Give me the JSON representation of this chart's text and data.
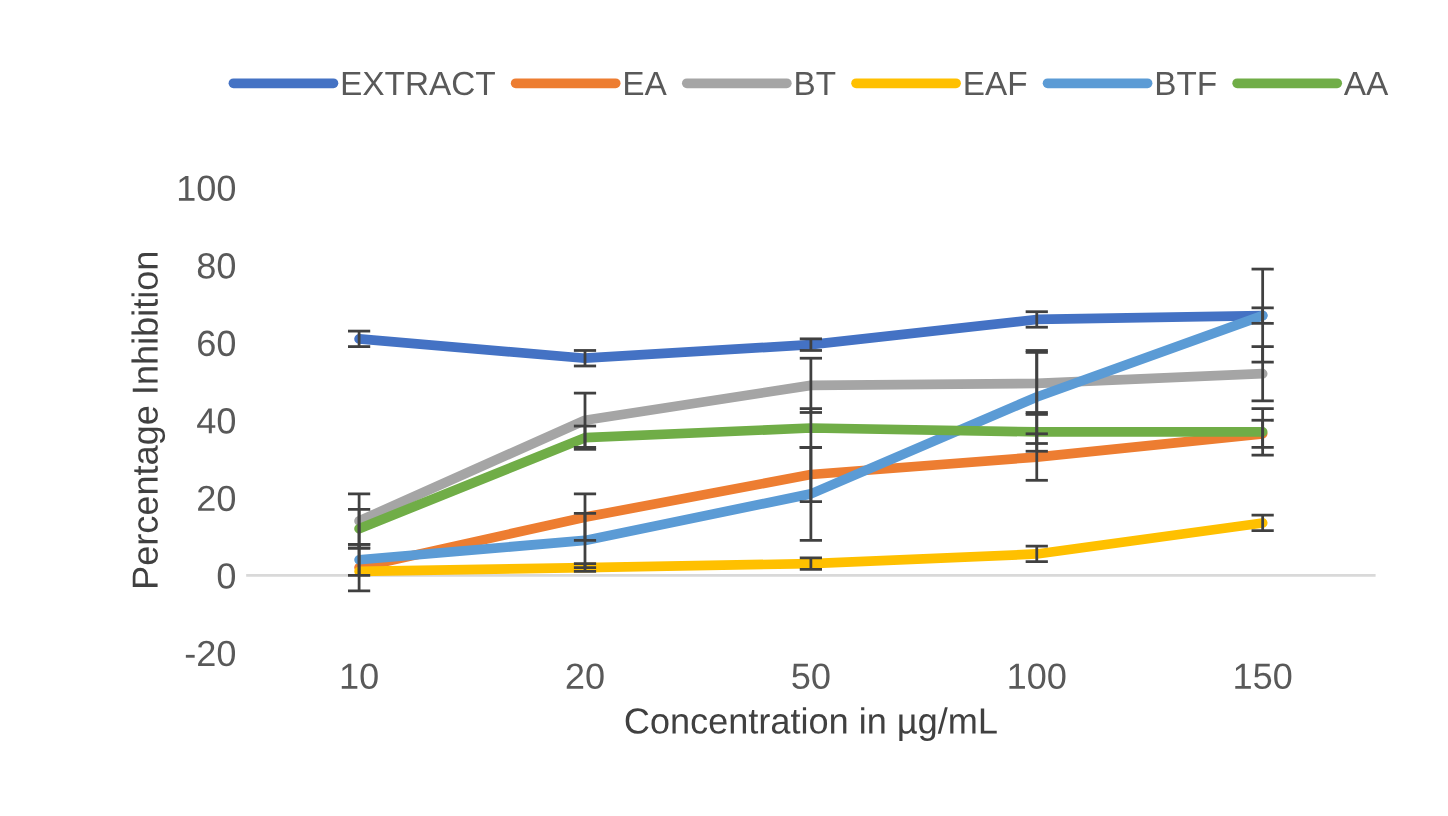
{
  "chart_data": {
    "type": "line",
    "xlabel": "Concentration in µg/mL",
    "ylabel": "Percentage Inhibition",
    "categories": [
      "10",
      "20",
      "50",
      "100",
      "150"
    ],
    "ylim": [
      -20,
      100
    ],
    "yticks": [
      -20,
      0,
      20,
      40,
      60,
      80,
      100
    ],
    "legend": "top",
    "grid": false,
    "marker": "none",
    "line_style": "solid",
    "series": [
      {
        "name": "EXTRACT",
        "color": "#4472c4",
        "values": [
          61,
          56,
          59.5,
          66,
          67
        ],
        "errors": [
          2,
          2,
          1.5,
          2,
          2
        ]
      },
      {
        "name": "EA",
        "color": "#ed7d31",
        "values": [
          2,
          15,
          26,
          30.5,
          36.5
        ],
        "errors": [
          6,
          6,
          7,
          6,
          3.5
        ]
      },
      {
        "name": "BT",
        "color": "#a5a5a5",
        "values": [
          14,
          40,
          49,
          49.5,
          52
        ],
        "errors": [
          7,
          7,
          7,
          8,
          7
        ]
      },
      {
        "name": "EAF",
        "color": "#ffc000",
        "values": [
          1,
          2,
          3,
          5.5,
          13.5
        ],
        "errors": [
          null,
          1,
          1.5,
          2,
          2
        ]
      },
      {
        "name": "BTF",
        "color": "#5b9bd5",
        "values": [
          4,
          9,
          21,
          46,
          67
        ],
        "errors": [
          4,
          7,
          12,
          12,
          12
        ]
      },
      {
        "name": "AA",
        "color": "#70ad47",
        "values": [
          12,
          35.5,
          38,
          37,
          37
        ],
        "errors": [
          5,
          3,
          5,
          5,
          6
        ]
      }
    ]
  }
}
